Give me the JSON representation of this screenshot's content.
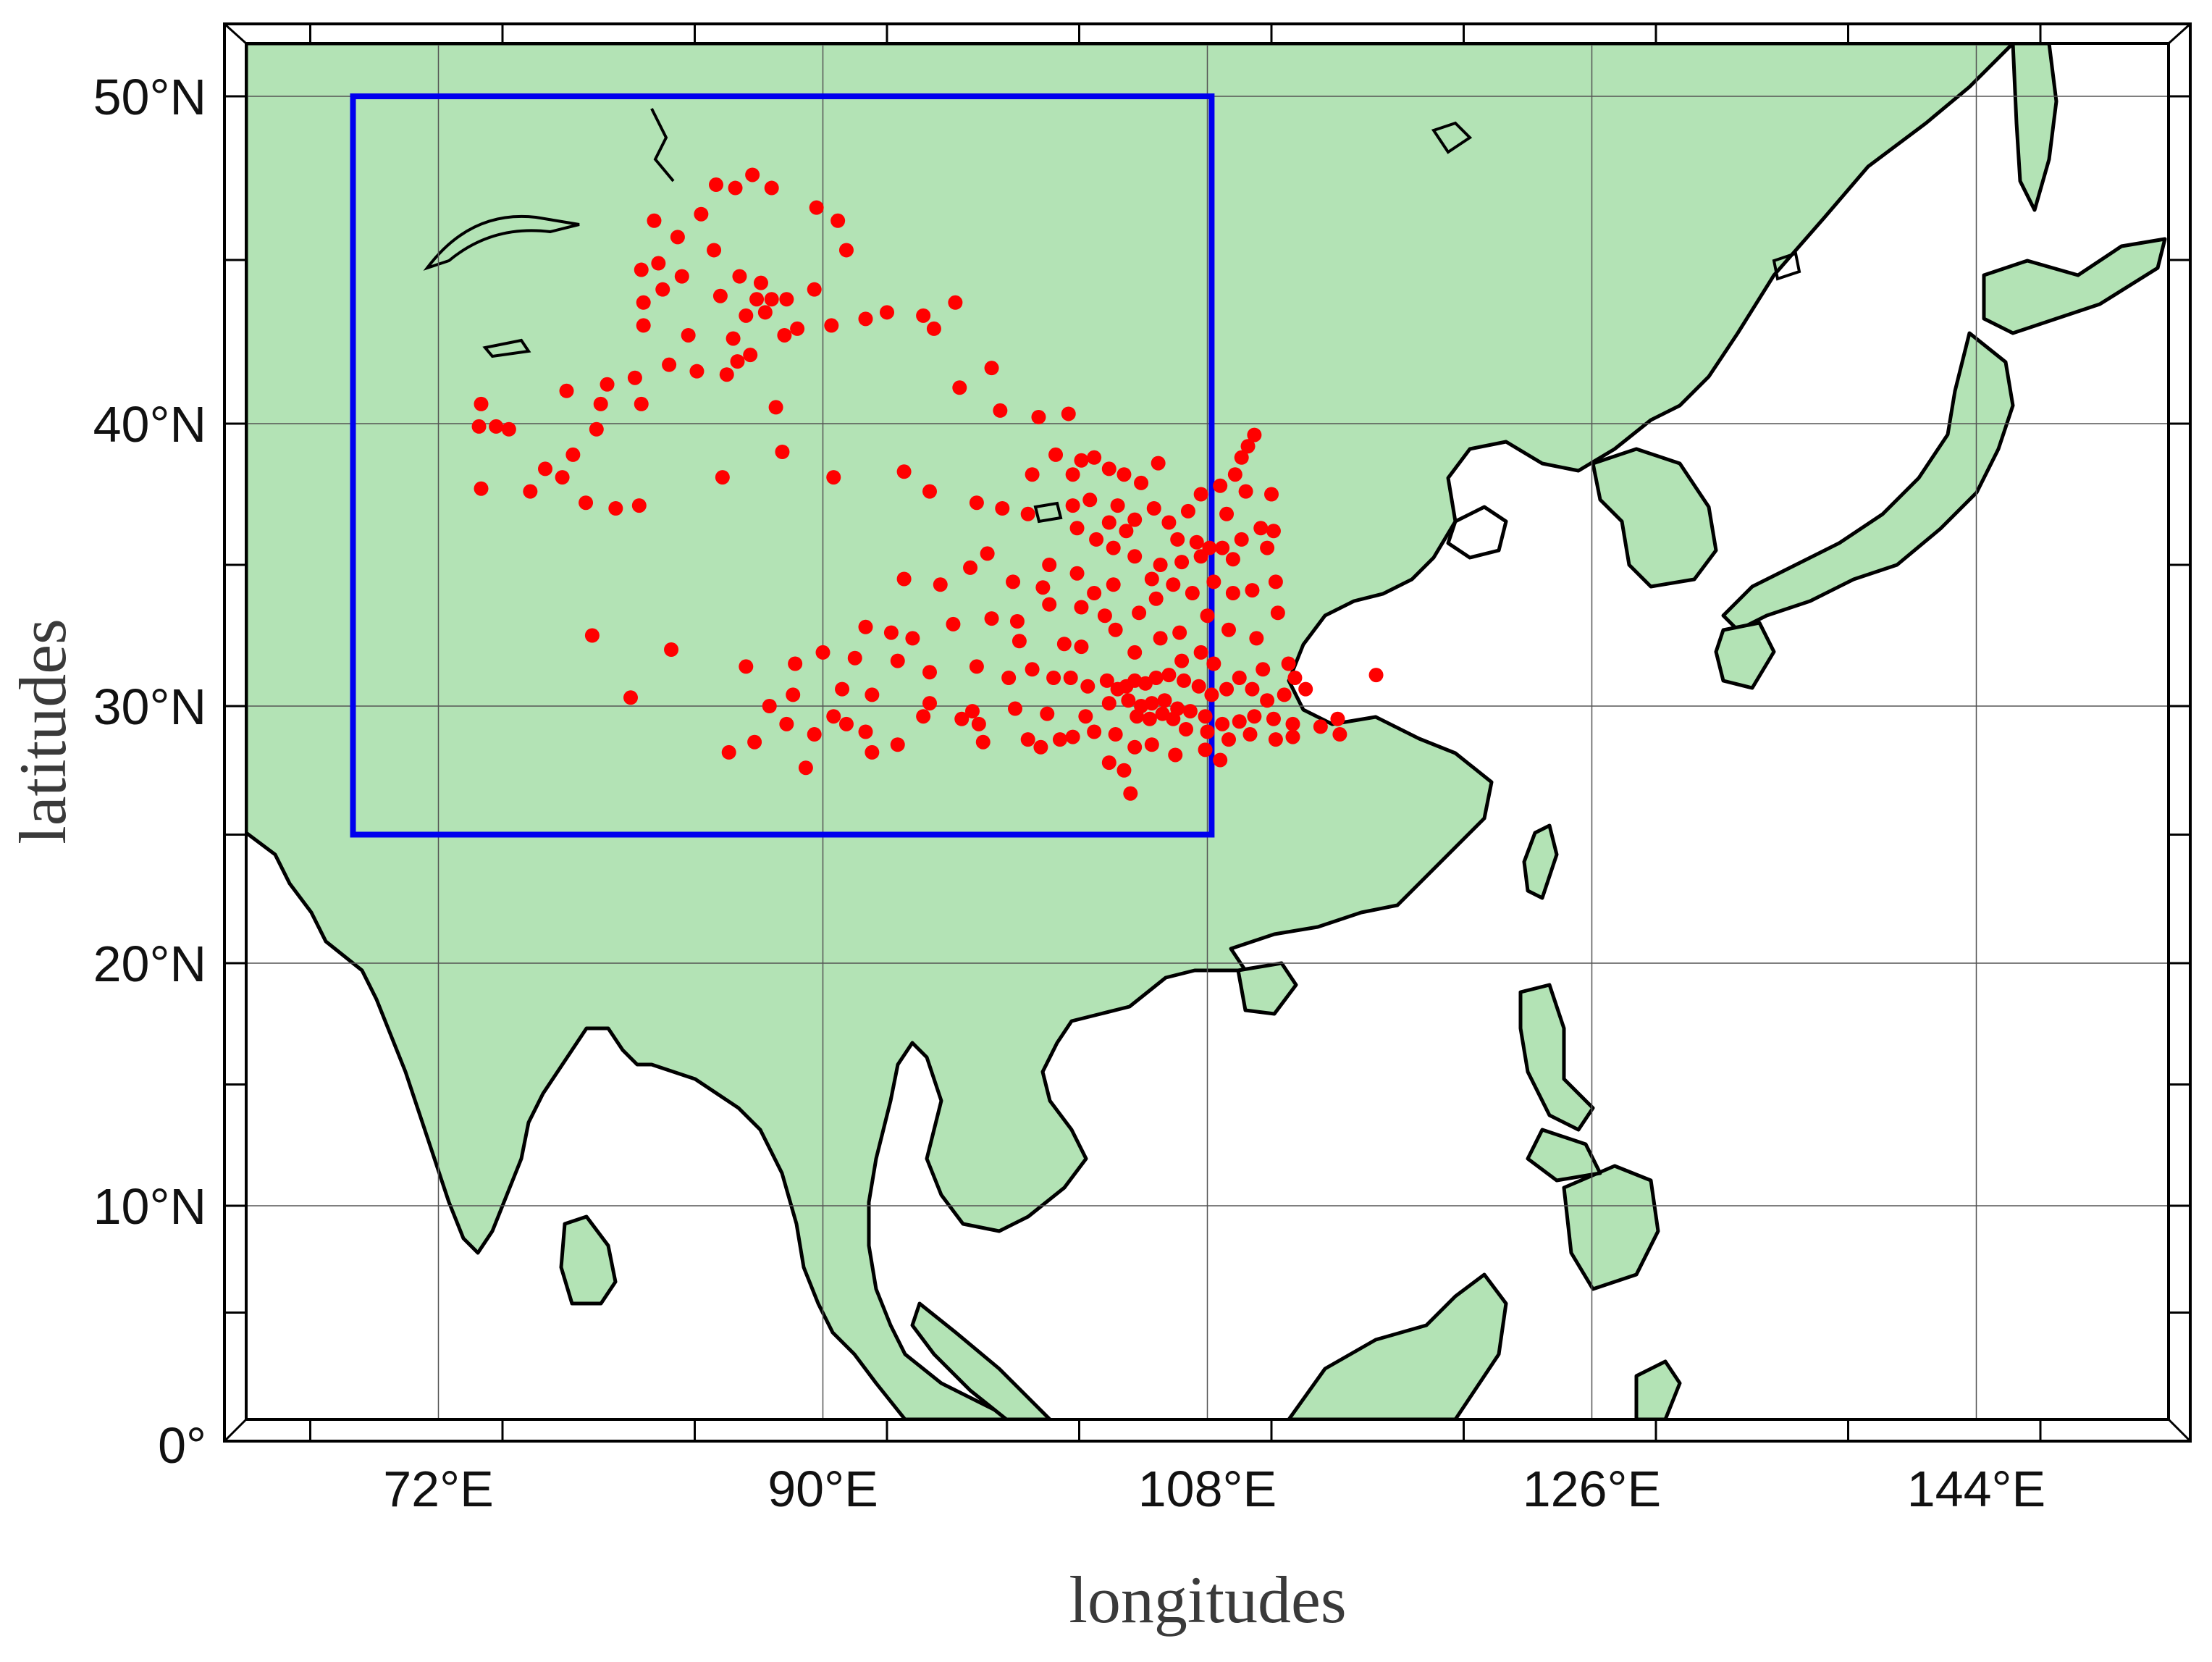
{
  "map": {
    "xlabel": "longitudes",
    "ylabel": "latitudes",
    "lon_range": [
      63,
      153
    ],
    "lat_range": [
      0,
      53
    ],
    "x_ticks": [
      {
        "value": 72,
        "label": "72°E"
      },
      {
        "value": 90,
        "label": "90°E"
      },
      {
        "value": 108,
        "label": "108°E"
      },
      {
        "value": 126,
        "label": "126°E"
      },
      {
        "value": 144,
        "label": "144°E"
      }
    ],
    "y_ticks": [
      {
        "value": 0,
        "label": "0°"
      },
      {
        "value": 10,
        "label": "10°N"
      },
      {
        "value": 20,
        "label": "20°N"
      },
      {
        "value": 30,
        "label": "30°N"
      },
      {
        "value": 40,
        "label": "40°N"
      },
      {
        "value": 50,
        "label": "50°N"
      }
    ],
    "region_box": {
      "lon_min": 68,
      "lon_max": 108.2,
      "lat_min": 25,
      "lat_max": 50,
      "color": "#0000ee"
    },
    "land_color": "#b3e3b5",
    "coast_color": "#000000",
    "station_color": "#ff0000",
    "grid": true,
    "stations": [
      [
        85,
        47.3
      ],
      [
        85.9,
        47.2
      ],
      [
        86.7,
        47.6
      ],
      [
        87.6,
        47.2
      ],
      [
        89.7,
        46.6
      ],
      [
        90.7,
        46.2
      ],
      [
        84.3,
        46.4
      ],
      [
        82.1,
        46.2
      ],
      [
        83.2,
        45.7
      ],
      [
        84.9,
        45.3
      ],
      [
        91.1,
        45.3
      ],
      [
        82.3,
        44.9
      ],
      [
        81.5,
        44.7
      ],
      [
        83.4,
        44.5
      ],
      [
        86.1,
        44.5
      ],
      [
        87.1,
        44.3
      ],
      [
        85.2,
        43.9
      ],
      [
        86.9,
        43.8
      ],
      [
        87.6,
        43.8
      ],
      [
        88.3,
        43.8
      ],
      [
        89.6,
        44.1
      ],
      [
        82.5,
        44.1
      ],
      [
        81.6,
        43.7
      ],
      [
        86.4,
        43.3
      ],
      [
        87.3,
        43.4
      ],
      [
        88.8,
        42.9
      ],
      [
        90.4,
        43.0
      ],
      [
        93.0,
        43.4
      ],
      [
        94.7,
        43.3
      ],
      [
        96.2,
        43.7
      ],
      [
        92.0,
        43.2
      ],
      [
        95.2,
        42.9
      ],
      [
        81.6,
        43.0
      ],
      [
        83.7,
        42.7
      ],
      [
        86.6,
        42.1
      ],
      [
        85.8,
        42.6
      ],
      [
        88.2,
        42.7
      ],
      [
        86.0,
        41.9
      ],
      [
        85.5,
        41.5
      ],
      [
        82.8,
        41.8
      ],
      [
        81.2,
        41.4
      ],
      [
        79.9,
        41.2
      ],
      [
        84.1,
        41.6
      ],
      [
        78.0,
        41.0
      ],
      [
        97.9,
        41.7
      ],
      [
        96.4,
        41.1
      ],
      [
        79.6,
        40.6
      ],
      [
        81.5,
        40.6
      ],
      [
        74.0,
        40.6
      ],
      [
        87.8,
        40.5
      ],
      [
        98.3,
        40.4
      ],
      [
        100.1,
        40.2
      ],
      [
        101.5,
        40.3
      ],
      [
        73.9,
        39.9
      ],
      [
        74.7,
        39.9
      ],
      [
        75.3,
        39.8
      ],
      [
        79.4,
        39.8
      ],
      [
        88.1,
        39.0
      ],
      [
        78.3,
        38.9
      ],
      [
        93.8,
        38.3
      ],
      [
        90.5,
        38.1
      ],
      [
        85.3,
        38.1
      ],
      [
        77.0,
        38.4
      ],
      [
        77.8,
        38.1
      ],
      [
        76.3,
        37.6
      ],
      [
        74.0,
        37.7
      ],
      [
        78.9,
        37.2
      ],
      [
        80.3,
        37.0
      ],
      [
        81.4,
        37.1
      ],
      [
        95.0,
        37.6
      ],
      [
        97.2,
        37.2
      ],
      [
        98.4,
        37.0
      ],
      [
        99.8,
        38.2
      ],
      [
        100.9,
        38.9
      ],
      [
        102.1,
        38.7
      ],
      [
        102.7,
        38.8
      ],
      [
        103.4,
        38.4
      ],
      [
        101.7,
        38.2
      ],
      [
        104.1,
        38.2
      ],
      [
        104.9,
        37.9
      ],
      [
        105.7,
        38.6
      ],
      [
        99.6,
        36.8
      ],
      [
        101.7,
        37.1
      ],
      [
        102.5,
        37.3
      ],
      [
        103.8,
        37.1
      ],
      [
        104.6,
        36.6
      ],
      [
        105.5,
        37.0
      ],
      [
        106.2,
        36.5
      ],
      [
        107.1,
        36.9
      ],
      [
        107.7,
        37.5
      ],
      [
        108.6,
        37.8
      ],
      [
        109.8,
        37.6
      ],
      [
        109.3,
        38.2
      ],
      [
        109.6,
        38.8
      ],
      [
        109.9,
        39.2
      ],
      [
        110.2,
        39.6
      ],
      [
        111.0,
        37.5
      ],
      [
        108.9,
        36.8
      ],
      [
        110.5,
        36.3
      ],
      [
        109.6,
        35.9
      ],
      [
        108.7,
        35.6
      ],
      [
        107.7,
        35.3
      ],
      [
        106.8,
        35.1
      ],
      [
        105.8,
        35.0
      ],
      [
        104.6,
        35.3
      ],
      [
        103.6,
        35.6
      ],
      [
        102.8,
        35.9
      ],
      [
        101.9,
        36.3
      ],
      [
        104.2,
        36.2
      ],
      [
        103.4,
        36.5
      ],
      [
        106.6,
        35.9
      ],
      [
        107.5,
        35.8
      ],
      [
        108.1,
        35.6
      ],
      [
        109.2,
        35.2
      ],
      [
        110.8,
        35.6
      ],
      [
        111.1,
        36.2
      ],
      [
        100.6,
        35.0
      ],
      [
        97.7,
        35.4
      ],
      [
        96.9,
        34.9
      ],
      [
        93.8,
        34.5
      ],
      [
        95.5,
        34.3
      ],
      [
        98.9,
        34.4
      ],
      [
        100.3,
        34.2
      ],
      [
        101.9,
        34.7
      ],
      [
        102.7,
        34.0
      ],
      [
        103.6,
        34.3
      ],
      [
        105.4,
        34.5
      ],
      [
        106.4,
        34.3
      ],
      [
        107.3,
        34.0
      ],
      [
        108.3,
        34.4
      ],
      [
        109.2,
        34.0
      ],
      [
        110.1,
        34.1
      ],
      [
        111.2,
        34.4
      ],
      [
        100.6,
        33.6
      ],
      [
        102.1,
        33.5
      ],
      [
        103.2,
        33.2
      ],
      [
        104.8,
        33.3
      ],
      [
        105.6,
        33.8
      ],
      [
        106.7,
        32.6
      ],
      [
        108.0,
        33.2
      ],
      [
        109.0,
        32.7
      ],
      [
        110.3,
        32.4
      ],
      [
        111.3,
        33.3
      ],
      [
        99.1,
        33.0
      ],
      [
        97.9,
        33.1
      ],
      [
        96.1,
        32.9
      ],
      [
        94.2,
        32.4
      ],
      [
        93.2,
        32.6
      ],
      [
        92.0,
        32.8
      ],
      [
        99.2,
        32.3
      ],
      [
        101.3,
        32.2
      ],
      [
        102.1,
        32.1
      ],
      [
        103.7,
        32.7
      ],
      [
        104.6,
        31.9
      ],
      [
        105.8,
        32.4
      ],
      [
        106.8,
        31.6
      ],
      [
        107.7,
        31.9
      ],
      [
        108.3,
        31.5
      ],
      [
        109.5,
        31.0
      ],
      [
        110.6,
        31.3
      ],
      [
        111.8,
        31.5
      ],
      [
        112.1,
        31.0
      ],
      [
        79.2,
        32.5
      ],
      [
        82.9,
        32.0
      ],
      [
        86.4,
        31.4
      ],
      [
        88.7,
        31.5
      ],
      [
        90.0,
        31.9
      ],
      [
        91.5,
        31.7
      ],
      [
        93.5,
        31.6
      ],
      [
        95.0,
        31.2
      ],
      [
        97.2,
        31.4
      ],
      [
        98.7,
        31.0
      ],
      [
        99.8,
        31.3
      ],
      [
        100.8,
        31.0
      ],
      [
        101.6,
        31.0
      ],
      [
        102.4,
        30.7
      ],
      [
        103.3,
        30.9
      ],
      [
        103.8,
        30.6
      ],
      [
        104.2,
        30.7
      ],
      [
        104.6,
        30.9
      ],
      [
        105.1,
        30.8
      ],
      [
        105.6,
        31.0
      ],
      [
        106.2,
        31.1
      ],
      [
        106.9,
        30.9
      ],
      [
        107.6,
        30.7
      ],
      [
        108.2,
        30.4
      ],
      [
        108.9,
        30.6
      ],
      [
        110.1,
        30.6
      ],
      [
        110.8,
        30.2
      ],
      [
        111.6,
        30.4
      ],
      [
        112.6,
        30.6
      ],
      [
        103.4,
        30.1
      ],
      [
        104.3,
        30.2
      ],
      [
        104.9,
        30.0
      ],
      [
        105.4,
        30.1
      ],
      [
        106.0,
        30.2
      ],
      [
        106.6,
        29.9
      ],
      [
        107.2,
        29.8
      ],
      [
        107.9,
        29.6
      ],
      [
        108.7,
        29.3
      ],
      [
        109.5,
        29.4
      ],
      [
        110.2,
        29.6
      ],
      [
        111.1,
        29.5
      ],
      [
        112.0,
        29.3
      ],
      [
        104.7,
        29.6
      ],
      [
        105.3,
        29.5
      ],
      [
        105.9,
        29.7
      ],
      [
        106.4,
        29.5
      ],
      [
        107.0,
        29.1
      ],
      [
        108.0,
        29.0
      ],
      [
        109.0,
        28.7
      ],
      [
        110.0,
        28.9
      ],
      [
        111.2,
        28.7
      ],
      [
        112.0,
        28.8
      ],
      [
        113.3,
        29.2
      ],
      [
        114.1,
        29.5
      ],
      [
        114.2,
        28.9
      ],
      [
        101.7,
        28.8
      ],
      [
        102.7,
        29.0
      ],
      [
        103.7,
        28.9
      ],
      [
        104.6,
        28.4
      ],
      [
        105.4,
        28.5
      ],
      [
        106.5,
        28.1
      ],
      [
        107.9,
        28.3
      ],
      [
        108.6,
        27.9
      ],
      [
        103.4,
        27.8
      ],
      [
        104.1,
        27.5
      ],
      [
        104.4,
        26.6
      ],
      [
        90.5,
        29.6
      ],
      [
        91.1,
        29.3
      ],
      [
        92.0,
        29.0
      ],
      [
        93.5,
        28.5
      ],
      [
        94.7,
        29.6
      ],
      [
        96.5,
        29.5
      ],
      [
        97.3,
        29.3
      ],
      [
        97.5,
        28.6
      ],
      [
        99.6,
        28.7
      ],
      [
        100.2,
        28.4
      ],
      [
        101.1,
        28.7
      ],
      [
        88.3,
        29.3
      ],
      [
        89.6,
        28.9
      ],
      [
        86.8,
        28.6
      ],
      [
        85.6,
        28.2
      ],
      [
        92.3,
        28.2
      ],
      [
        89.2,
        27.6
      ],
      [
        81.0,
        30.3
      ],
      [
        87.5,
        30.0
      ],
      [
        88.6,
        30.4
      ],
      [
        90.9,
        30.6
      ],
      [
        92.3,
        30.4
      ],
      [
        95.0,
        30.1
      ],
      [
        97.0,
        29.8
      ],
      [
        99.0,
        29.9
      ],
      [
        100.5,
        29.7
      ],
      [
        102.3,
        29.6
      ],
      [
        115.9,
        31.1
      ]
    ]
  }
}
